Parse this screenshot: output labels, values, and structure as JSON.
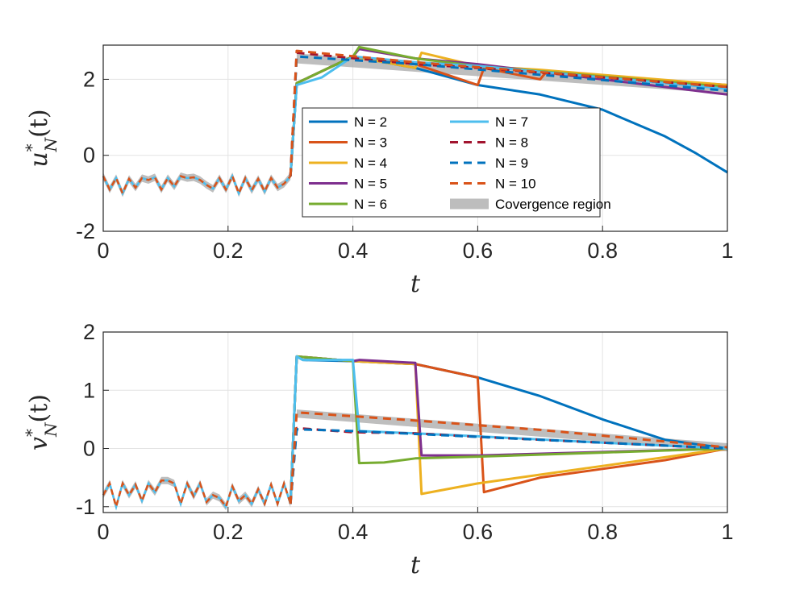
{
  "colors": {
    "N2": "#0072BD",
    "N3": "#D95319",
    "N4": "#EDB120",
    "N5": "#7E2F8E",
    "N6": "#77AC30",
    "N7": "#4DBEEE",
    "N8": "#A2142F",
    "N9": "#0072BD",
    "N10": "#D95319",
    "band": "#a8a8a8"
  },
  "chart_data": [
    {
      "type": "line",
      "panel": "top",
      "ylabel_base": "u",
      "ylabel_sup": "*",
      "ylabel_sub": "N",
      "ylabel_arg": "(t)",
      "xlabel": "t",
      "xlim": [
        0,
        1
      ],
      "ylim": [
        -2,
        2.9
      ],
      "xticks": [
        0,
        0.2,
        0.4,
        0.6,
        0.8,
        1
      ],
      "xtick_labels": [
        "0",
        "0.2",
        "0.4",
        "0.6",
        "0.8",
        "1"
      ],
      "yticks": [
        -2,
        0,
        2
      ],
      "ytick_labels": [
        "-2",
        "0",
        "2"
      ],
      "grid": true,
      "legend_position": "center",
      "noise": [
        -0.55,
        -0.9,
        -0.6,
        -1.0,
        -0.62,
        -0.85,
        -0.6,
        -0.65,
        -0.58,
        -0.9,
        -0.6,
        -0.82,
        -0.55,
        -0.6,
        -0.58,
        -0.65,
        -0.78,
        -0.88,
        -0.6,
        -0.9,
        -0.55,
        -1.0,
        -0.6,
        -0.92,
        -0.62,
        -0.95,
        -0.6,
        -0.85,
        -0.75,
        -0.55
      ],
      "band": {
        "name": "Covergence region",
        "x": [
          0.31,
          1
        ],
        "y": [
          2.55,
          1.75
        ],
        "halfwidth": 0.13
      },
      "series": [
        {
          "name": "N = 2",
          "color_key": "N2",
          "dash": false,
          "pts": [
            [
              0.31,
              1.9
            ],
            [
              0.4,
              2.6
            ],
            [
              0.5,
              2.3
            ],
            [
              0.6,
              1.85
            ],
            [
              0.7,
              1.6
            ],
            [
              0.8,
              1.2
            ],
            [
              0.9,
              0.5
            ],
            [
              0.95,
              0.05
            ],
            [
              1,
              -0.45
            ]
          ]
        },
        {
          "name": "N = 3",
          "color_key": "N3",
          "dash": false,
          "pts": [
            [
              0.31,
              1.9
            ],
            [
              0.4,
              2.6
            ],
            [
              0.5,
              2.4
            ],
            [
              0.6,
              1.85
            ],
            [
              0.61,
              2.3
            ],
            [
              0.7,
              2.0
            ],
            [
              0.71,
              2.2
            ],
            [
              1,
              1.85
            ]
          ]
        },
        {
          "name": "N = 4",
          "color_key": "N4",
          "dash": false,
          "pts": [
            [
              0.31,
              1.9
            ],
            [
              0.4,
              2.6
            ],
            [
              0.5,
              2.3
            ],
            [
              0.51,
              2.7
            ],
            [
              0.6,
              2.35
            ],
            [
              0.7,
              2.25
            ],
            [
              1,
              1.85
            ]
          ]
        },
        {
          "name": "N = 5",
          "color_key": "N5",
          "dash": false,
          "pts": [
            [
              0.31,
              1.9
            ],
            [
              0.4,
              2.6
            ],
            [
              0.41,
              2.8
            ],
            [
              0.5,
              2.55
            ],
            [
              0.6,
              2.4
            ],
            [
              1,
              1.6
            ]
          ]
        },
        {
          "name": "N = 6",
          "color_key": "N6",
          "dash": false,
          "pts": [
            [
              0.31,
              1.9
            ],
            [
              0.4,
              2.6
            ],
            [
              0.41,
              2.85
            ],
            [
              0.5,
              2.55
            ],
            [
              0.6,
              2.35
            ],
            [
              1,
              1.8
            ]
          ]
        },
        {
          "name": "N = 7",
          "color_key": "N7",
          "dash": false,
          "pts": [
            [
              0.31,
              1.85
            ],
            [
              0.35,
              2.05
            ],
            [
              0.4,
              2.6
            ],
            [
              0.5,
              2.45
            ],
            [
              0.6,
              2.35
            ],
            [
              1,
              1.75
            ]
          ]
        },
        {
          "name": "N = 8",
          "color_key": "N8",
          "dash": true,
          "pts": [
            [
              0.31,
              2.7
            ],
            [
              0.5,
              2.4
            ],
            [
              0.6,
              2.3
            ],
            [
              1,
              1.8
            ]
          ]
        },
        {
          "name": "N = 9",
          "color_key": "N9",
          "dash": true,
          "pts": [
            [
              0.31,
              2.6
            ],
            [
              0.5,
              2.4
            ],
            [
              1,
              1.7
            ]
          ]
        },
        {
          "name": "N = 10",
          "color_key": "N10",
          "dash": true,
          "pts": [
            [
              0.31,
              2.75
            ],
            [
              0.5,
              2.45
            ],
            [
              1,
              1.8
            ]
          ]
        }
      ]
    },
    {
      "type": "line",
      "panel": "bottom",
      "ylabel_base": "v",
      "ylabel_sup": "*",
      "ylabel_sub": "N",
      "ylabel_arg": "(t)",
      "xlabel": "t",
      "xlim": [
        0,
        1
      ],
      "ylim": [
        -1.1,
        2
      ],
      "xticks": [
        0,
        0.2,
        0.4,
        0.6,
        0.8,
        1
      ],
      "xtick_labels": [
        "0",
        "0.2",
        "0.4",
        "0.6",
        "0.8",
        "1"
      ],
      "yticks": [
        -1,
        0,
        1,
        2
      ],
      "ytick_labels": [
        "-1",
        "0",
        "1",
        "2"
      ],
      "grid": true,
      "noise": [
        -0.8,
        -0.6,
        -1.0,
        -0.6,
        -0.8,
        -0.62,
        -0.9,
        -0.6,
        -0.75,
        -0.55,
        -0.55,
        -0.6,
        -0.95,
        -0.6,
        -0.82,
        -0.6,
        -0.92,
        -0.8,
        -0.85,
        -1.0,
        -0.65,
        -0.9,
        -0.8,
        -0.95,
        -0.7,
        -0.95,
        -0.62,
        -0.95,
        -0.6,
        -0.95
      ],
      "band": {
        "name": "Covergence region",
        "x": [
          0.31,
          1
        ],
        "y": [
          0.6,
          0.02
        ],
        "halfwidth": 0.07
      },
      "series": [
        {
          "name": "N = 2",
          "color_key": "N2",
          "dash": false,
          "pts": [
            [
              0.31,
              1.58
            ],
            [
              0.32,
              1.52
            ],
            [
              0.4,
              1.5
            ],
            [
              0.5,
              1.45
            ],
            [
              0.6,
              1.22
            ],
            [
              0.7,
              0.9
            ],
            [
              0.8,
              0.5
            ],
            [
              0.9,
              0.15
            ],
            [
              1,
              0.0
            ]
          ]
        },
        {
          "name": "N = 3",
          "color_key": "N3",
          "dash": false,
          "pts": [
            [
              0.31,
              1.58
            ],
            [
              0.4,
              1.5
            ],
            [
              0.5,
              1.45
            ],
            [
              0.6,
              1.22
            ],
            [
              0.61,
              -0.75
            ],
            [
              0.7,
              -0.5
            ],
            [
              0.8,
              -0.35
            ],
            [
              0.9,
              -0.2
            ],
            [
              1,
              0.0
            ]
          ]
        },
        {
          "name": "N = 4",
          "color_key": "N4",
          "dash": false,
          "pts": [
            [
              0.31,
              1.58
            ],
            [
              0.4,
              1.5
            ],
            [
              0.5,
              1.45
            ],
            [
              0.51,
              -0.78
            ],
            [
              0.6,
              -0.6
            ],
            [
              0.7,
              -0.45
            ],
            [
              0.8,
              -0.3
            ],
            [
              0.9,
              -0.15
            ],
            [
              1,
              0.0
            ]
          ]
        },
        {
          "name": "N = 5",
          "color_key": "N5",
          "dash": false,
          "pts": [
            [
              0.31,
              1.58
            ],
            [
              0.4,
              1.5
            ],
            [
              0.41,
              1.52
            ],
            [
              0.5,
              1.47
            ],
            [
              0.51,
              -0.12
            ],
            [
              0.6,
              -0.12
            ],
            [
              0.8,
              -0.06
            ],
            [
              1,
              0.0
            ]
          ]
        },
        {
          "name": "N = 6",
          "color_key": "N6",
          "dash": false,
          "pts": [
            [
              0.31,
              1.58
            ],
            [
              0.4,
              1.5
            ],
            [
              0.41,
              -0.25
            ],
            [
              0.45,
              -0.24
            ],
            [
              0.5,
              -0.17
            ],
            [
              0.6,
              -0.14
            ],
            [
              0.8,
              -0.07
            ],
            [
              1,
              0.0
            ]
          ]
        },
        {
          "name": "N = 7",
          "color_key": "N7",
          "dash": false,
          "pts": [
            [
              0.31,
              1.58
            ],
            [
              0.32,
              1.52
            ],
            [
              0.4,
              1.52
            ],
            [
              0.41,
              0.3
            ],
            [
              0.5,
              0.26
            ],
            [
              0.6,
              0.21
            ],
            [
              0.8,
              0.1
            ],
            [
              1,
              0.0
            ]
          ]
        },
        {
          "name": "N = 8",
          "color_key": "N8",
          "dash": true,
          "pts": [
            [
              0.31,
              0.35
            ],
            [
              0.4,
              0.28
            ],
            [
              0.5,
              0.26
            ],
            [
              0.6,
              0.2
            ],
            [
              0.8,
              0.1
            ],
            [
              1,
              0.0
            ]
          ]
        },
        {
          "name": "N = 9",
          "color_key": "N9",
          "dash": true,
          "pts": [
            [
              0.31,
              0.33
            ],
            [
              0.4,
              0.3
            ],
            [
              0.6,
              0.2
            ],
            [
              1,
              0.0
            ]
          ]
        },
        {
          "name": "N = 10",
          "color_key": "N10",
          "dash": true,
          "pts": [
            [
              0.31,
              0.62
            ],
            [
              0.5,
              0.48
            ],
            [
              0.7,
              0.32
            ],
            [
              0.9,
              0.12
            ],
            [
              1,
              0.02
            ]
          ]
        }
      ]
    }
  ],
  "legend": {
    "items": [
      {
        "label": "N = 2",
        "color_key": "N2",
        "style": "solid"
      },
      {
        "label": "N = 3",
        "color_key": "N3",
        "style": "solid"
      },
      {
        "label": "N = 4",
        "color_key": "N4",
        "style": "solid"
      },
      {
        "label": "N = 5",
        "color_key": "N5",
        "style": "solid"
      },
      {
        "label": "N = 6",
        "color_key": "N6",
        "style": "solid"
      },
      {
        "label": "N = 7",
        "color_key": "N7",
        "style": "solid"
      },
      {
        "label": "N = 8",
        "color_key": "N8",
        "style": "dashed"
      },
      {
        "label": "N = 9",
        "color_key": "N9",
        "style": "dashed"
      },
      {
        "label": "N = 10",
        "color_key": "N10",
        "style": "dashed"
      },
      {
        "label": "Covergence region",
        "color_key": "band",
        "style": "band"
      }
    ]
  }
}
